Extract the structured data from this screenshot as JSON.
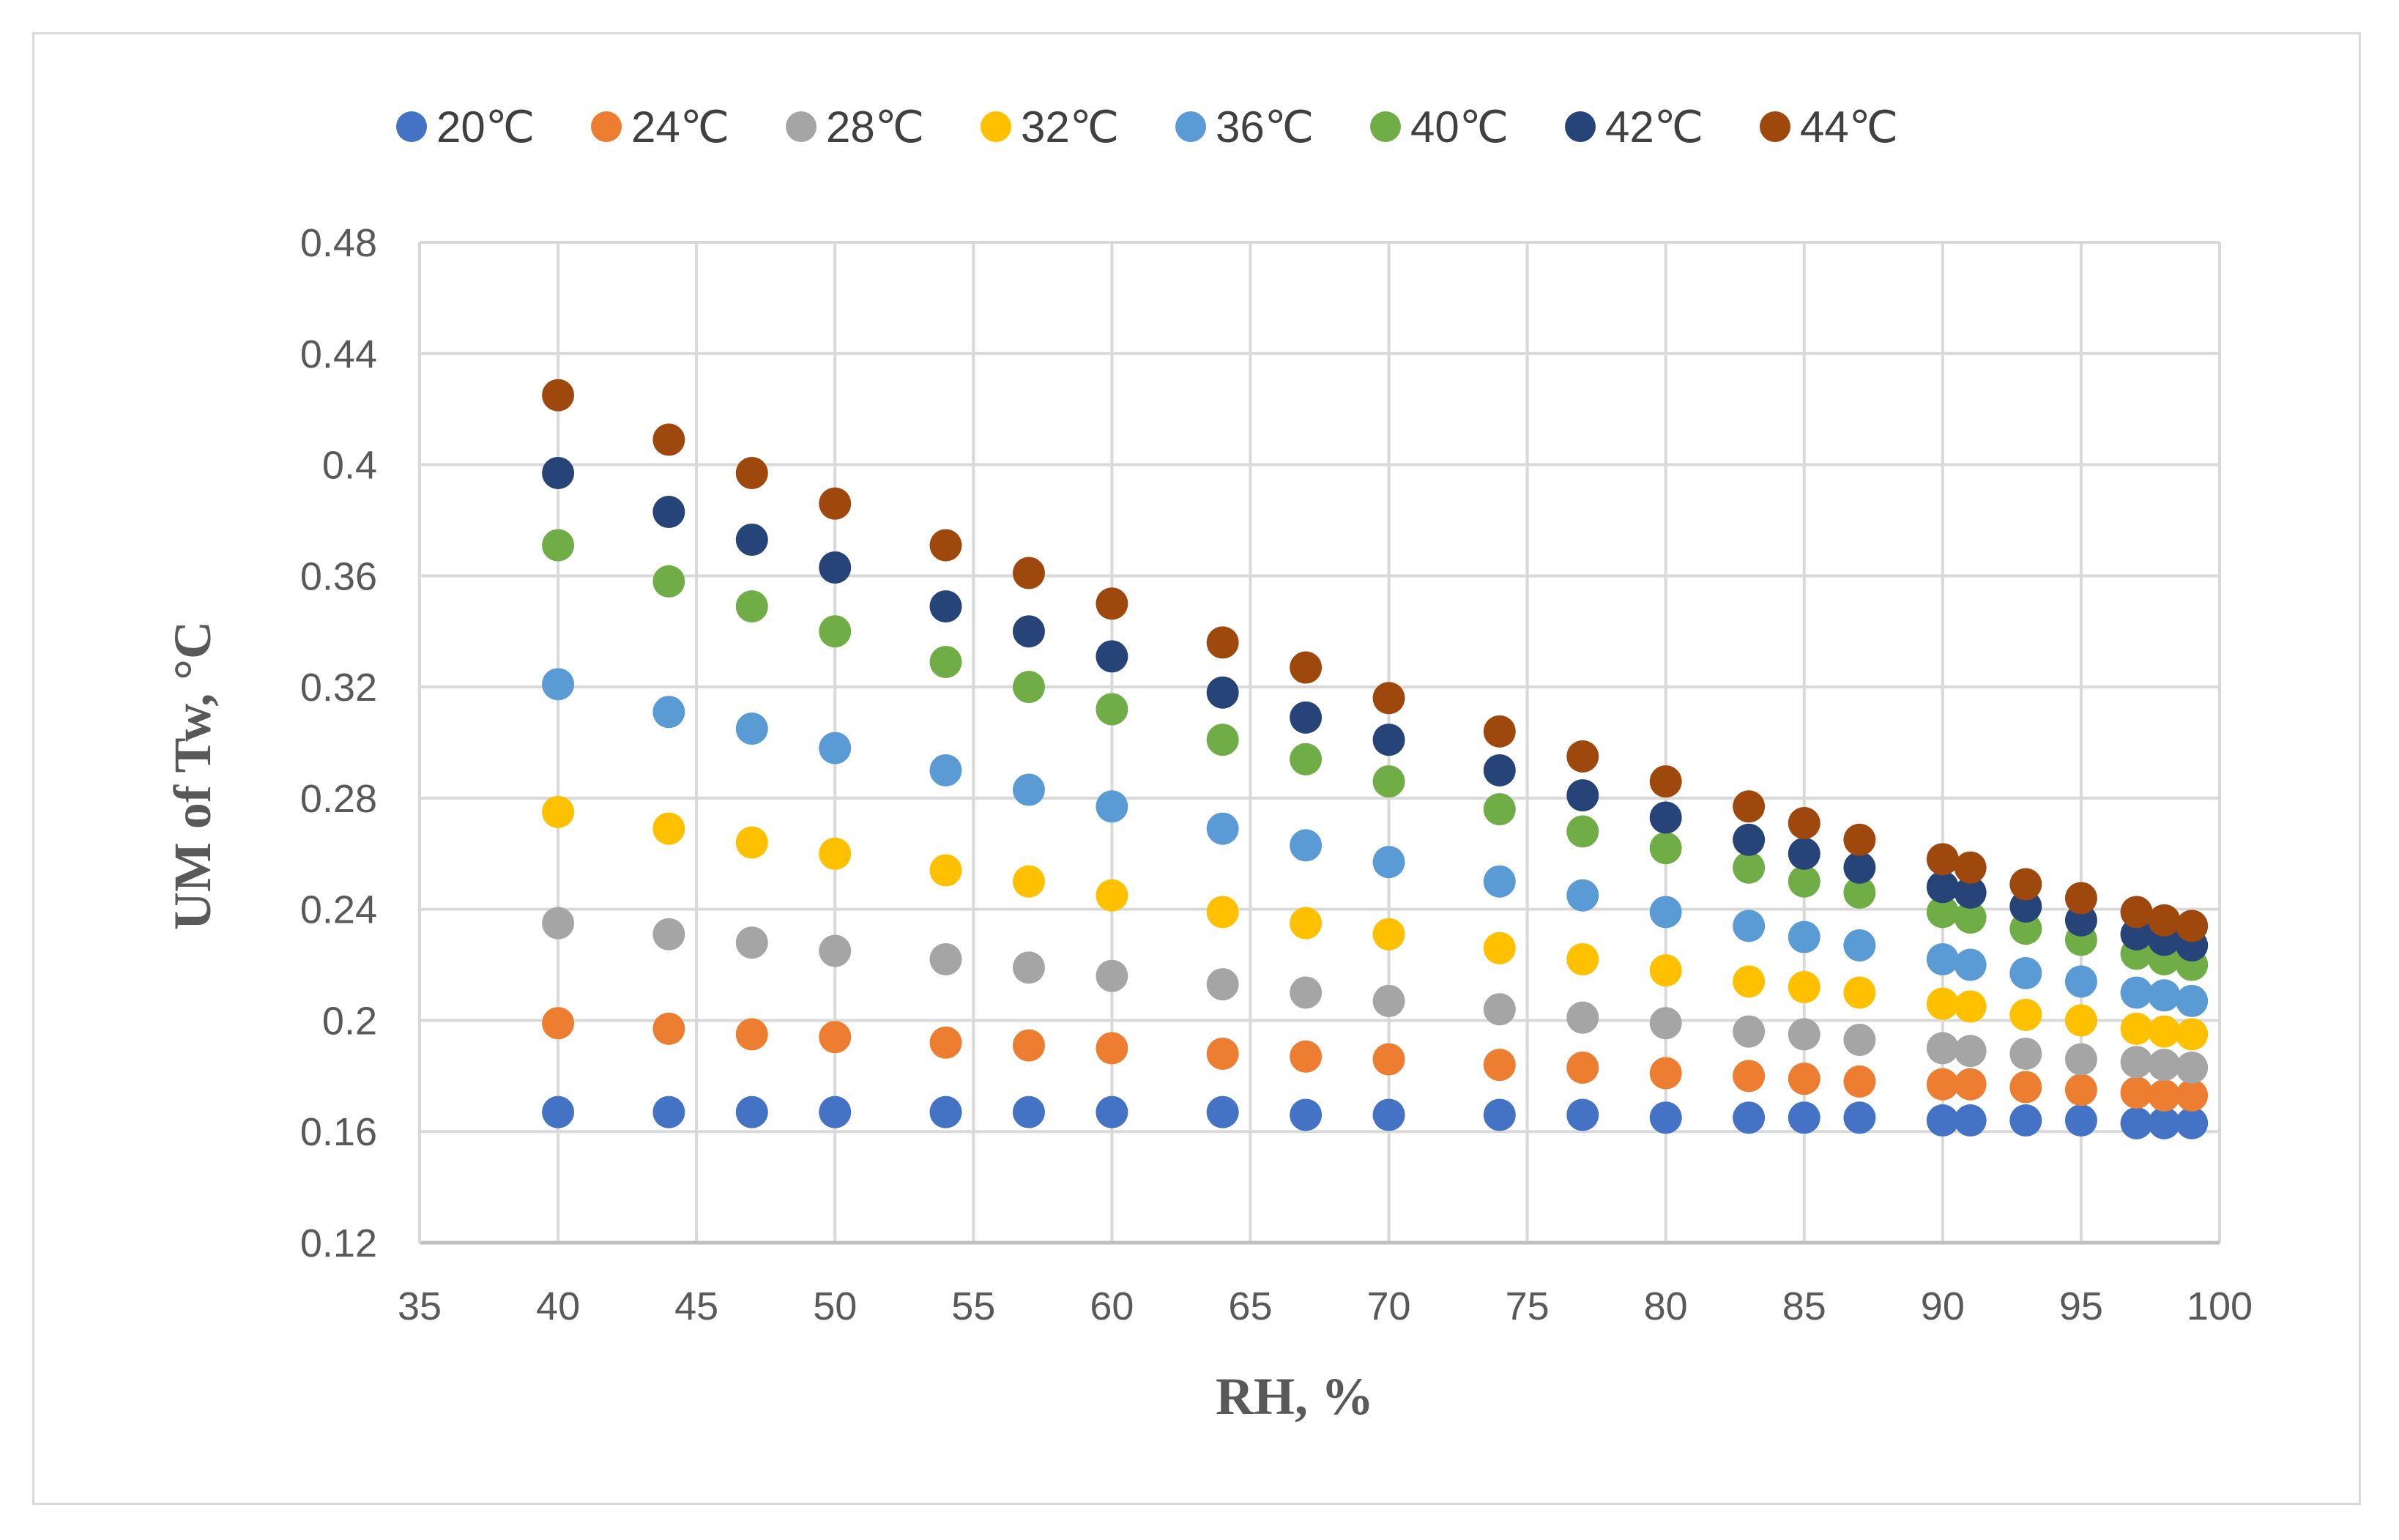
{
  "chart_data": {
    "type": "scatter",
    "xlabel": "RH, %",
    "ylabel": "UM of Tw, °C",
    "xlim": [
      35,
      100
    ],
    "ylim": [
      0.12,
      0.48
    ],
    "xticks": [
      35,
      40,
      45,
      50,
      55,
      60,
      65,
      70,
      75,
      80,
      85,
      90,
      95,
      100
    ],
    "xtick_labels": [
      "35",
      "40",
      "45",
      "50",
      "55",
      "60",
      "65",
      "70",
      "75",
      "80",
      "85",
      "90",
      "95",
      "100"
    ],
    "yticks": [
      0.12,
      0.16,
      0.2,
      0.24,
      0.28,
      0.32,
      0.36,
      0.4,
      0.44,
      0.48
    ],
    "ytick_labels": [
      "0.12",
      "0.16",
      "0.2",
      "0.24",
      "0.28",
      "0.32",
      "0.36",
      "0.4",
      "0.44",
      "0.48"
    ],
    "grid": true,
    "legend_position": "top",
    "x": [
      40,
      44,
      47,
      50,
      54,
      57,
      60,
      64,
      67,
      70,
      74,
      77,
      80,
      83,
      85,
      87,
      90,
      91,
      93,
      95,
      97,
      98,
      99
    ],
    "series": [
      {
        "name": "20℃",
        "color": "#4472C4",
        "values": [
          0.167,
          0.167,
          0.167,
          0.167,
          0.167,
          0.167,
          0.167,
          0.167,
          0.166,
          0.166,
          0.166,
          0.166,
          0.165,
          0.165,
          0.165,
          0.165,
          0.164,
          0.164,
          0.164,
          0.164,
          0.163,
          0.163,
          0.163
        ]
      },
      {
        "name": "24℃",
        "color": "#ED7D31",
        "values": [
          0.199,
          0.197,
          0.195,
          0.194,
          0.192,
          0.191,
          0.19,
          0.188,
          0.187,
          0.186,
          0.184,
          0.183,
          0.181,
          0.18,
          0.179,
          0.178,
          0.177,
          0.177,
          0.176,
          0.175,
          0.174,
          0.173,
          0.173
        ]
      },
      {
        "name": "28℃",
        "color": "#A5A5A5",
        "values": [
          0.235,
          0.231,
          0.228,
          0.225,
          0.222,
          0.219,
          0.216,
          0.213,
          0.21,
          0.207,
          0.204,
          0.201,
          0.199,
          0.196,
          0.195,
          0.193,
          0.19,
          0.189,
          0.188,
          0.186,
          0.185,
          0.184,
          0.183
        ]
      },
      {
        "name": "32℃",
        "color": "#FFC000",
        "values": [
          0.275,
          0.269,
          0.264,
          0.26,
          0.254,
          0.25,
          0.245,
          0.239,
          0.235,
          0.231,
          0.226,
          0.222,
          0.218,
          0.214,
          0.212,
          0.21,
          0.206,
          0.205,
          0.202,
          0.2,
          0.197,
          0.196,
          0.195
        ]
      },
      {
        "name": "36℃",
        "color": "#5B9BD5",
        "values": [
          0.321,
          0.311,
          0.305,
          0.298,
          0.29,
          0.283,
          0.277,
          0.269,
          0.263,
          0.257,
          0.25,
          0.245,
          0.239,
          0.234,
          0.23,
          0.227,
          0.222,
          0.22,
          0.217,
          0.214,
          0.21,
          0.209,
          0.207
        ]
      },
      {
        "name": "40℃",
        "color": "#70AD47",
        "values": [
          0.371,
          0.358,
          0.349,
          0.34,
          0.329,
          0.32,
          0.312,
          0.301,
          0.294,
          0.286,
          0.276,
          0.268,
          0.262,
          0.255,
          0.25,
          0.246,
          0.239,
          0.237,
          0.233,
          0.229,
          0.224,
          0.222,
          0.22
        ]
      },
      {
        "name": "42℃",
        "color": "#264478",
        "values": [
          0.397,
          0.383,
          0.373,
          0.363,
          0.349,
          0.34,
          0.331,
          0.318,
          0.309,
          0.301,
          0.29,
          0.281,
          0.273,
          0.265,
          0.26,
          0.255,
          0.248,
          0.246,
          0.241,
          0.236,
          0.231,
          0.229,
          0.227
        ]
      },
      {
        "name": "44℃",
        "color": "#9E480E",
        "values": [
          0.425,
          0.409,
          0.397,
          0.386,
          0.371,
          0.361,
          0.35,
          0.336,
          0.327,
          0.316,
          0.304,
          0.295,
          0.286,
          0.277,
          0.271,
          0.265,
          0.258,
          0.255,
          0.249,
          0.244,
          0.239,
          0.236,
          0.234
        ]
      }
    ]
  }
}
